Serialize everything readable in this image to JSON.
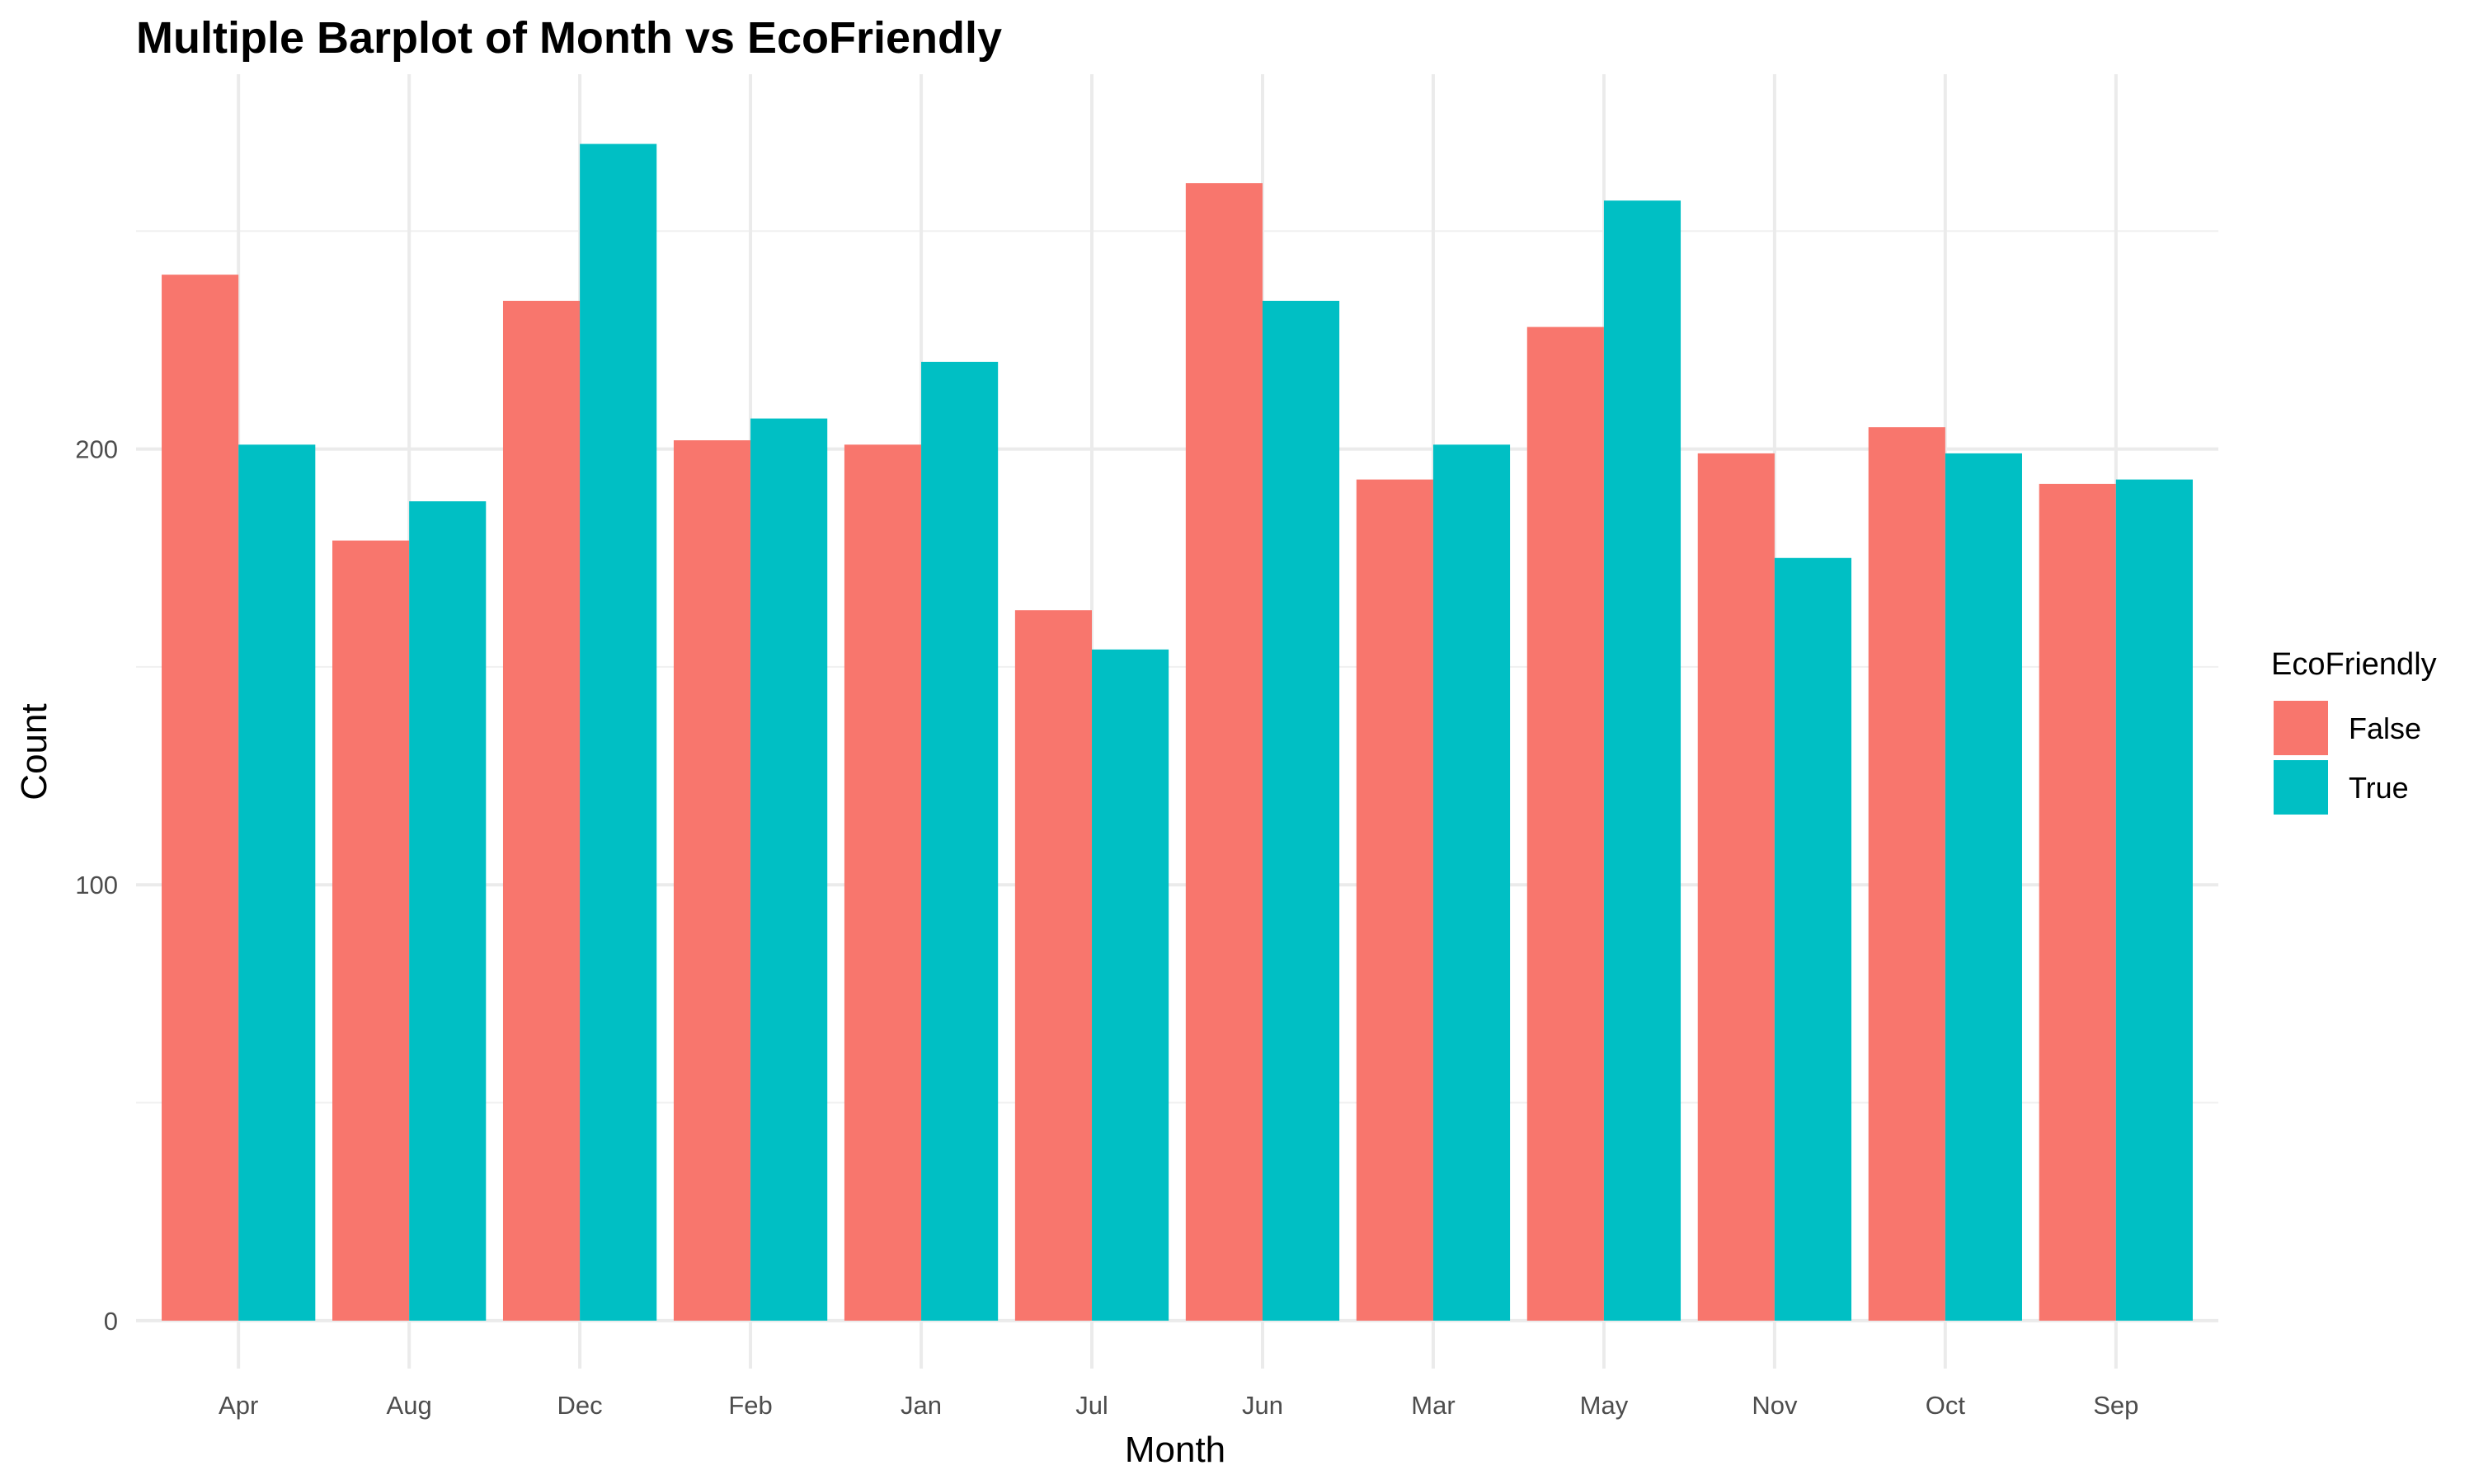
{
  "chart_data": {
    "type": "bar",
    "title": "Multiple Barplot of Month vs EcoFriendly",
    "xlabel": "Month",
    "ylabel": "Count",
    "categories": [
      "Apr",
      "Aug",
      "Dec",
      "Feb",
      "Jan",
      "Jul",
      "Jun",
      "Mar",
      "May",
      "Nov",
      "Oct",
      "Sep"
    ],
    "series": [
      {
        "name": "False",
        "color": "#F8766D",
        "values": [
          240,
          179,
          234,
          202,
          201,
          163,
          261,
          193,
          228,
          199,
          205,
          192
        ]
      },
      {
        "name": "True",
        "color": "#00BFC4",
        "values": [
          201,
          188,
          270,
          207,
          220,
          154,
          234,
          201,
          257,
          175,
          199,
          193
        ]
      }
    ],
    "yticks": [
      0,
      100,
      200
    ],
    "ylim": [
      -11,
      286
    ],
    "grid": true,
    "legend": {
      "title": "EcoFriendly",
      "position": "right"
    }
  }
}
